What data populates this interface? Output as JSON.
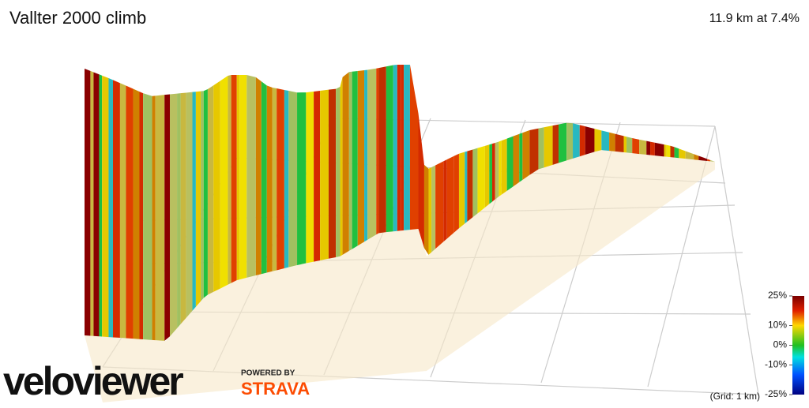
{
  "chart_data": {
    "type": "profile3d",
    "title": "Vallter 2000 climb",
    "subtitle": "11.9 km at 7.4%",
    "colorbar": {
      "lim": [
        -25,
        25
      ],
      "ticks": [
        {
          "value": 25,
          "label": "25%"
        },
        {
          "value": 10,
          "label": "10%"
        },
        {
          "value": 0,
          "label": "0%"
        },
        {
          "value": -10,
          "label": "-10%"
        },
        {
          "value": -25,
          "label": "-25%"
        }
      ]
    },
    "grid_note": "(Grid: 1 km)"
  },
  "branding": {
    "logo": "veloviewer",
    "powered_by": "POWERED BY",
    "partner": "STRAVA"
  }
}
